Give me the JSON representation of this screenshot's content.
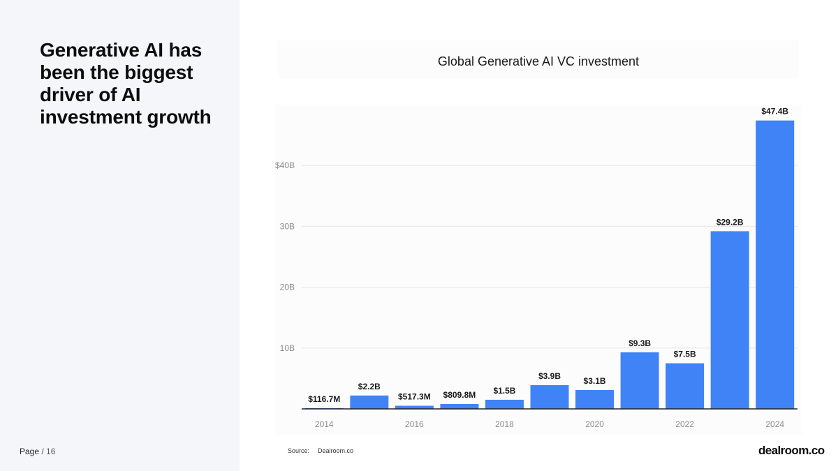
{
  "headline": "Generative AI has been the biggest driver of AI investment growth",
  "page": {
    "label": "Page",
    "number": "/ 16"
  },
  "source": {
    "label": "Source:",
    "value": "Dealroom.co"
  },
  "logo": "dealroom.co",
  "colors": {
    "bar": "#3f83f7",
    "grid": "#e4e4e4",
    "axis": "#222222",
    "tick": "#8a8a8a",
    "label": "#1a1a1a",
    "panel": "#f5f6fa"
  },
  "chart_data": {
    "type": "bar",
    "title": "Global Generative AI VC investment",
    "xlabel": "",
    "ylabel": "",
    "ylim": [
      0,
      50
    ],
    "grid": true,
    "categories": [
      "2014",
      "2015",
      "2016",
      "2017",
      "2018",
      "2019",
      "2020",
      "2021",
      "2022",
      "2023",
      "2024"
    ],
    "values": [
      0.1167,
      2.2,
      0.5173,
      0.8098,
      1.5,
      3.9,
      3.1,
      9.3,
      7.5,
      29.2,
      47.4
    ],
    "data_labels": [
      "$116.7M",
      "$2.2B",
      "$517.3M",
      "$809.8M",
      "$1.5B",
      "$3.9B",
      "$3.1B",
      "$9.3B",
      "$7.5B",
      "$29.2B",
      "$47.4B"
    ],
    "x_ticks": [
      "2014",
      "2016",
      "2018",
      "2020",
      "2022",
      "2024"
    ],
    "y_ticks": [
      {
        "value": 10,
        "label": "10B"
      },
      {
        "value": 20,
        "label": "20B"
      },
      {
        "value": 30,
        "label": "30B"
      },
      {
        "value": 40,
        "label": "$40B"
      }
    ]
  }
}
